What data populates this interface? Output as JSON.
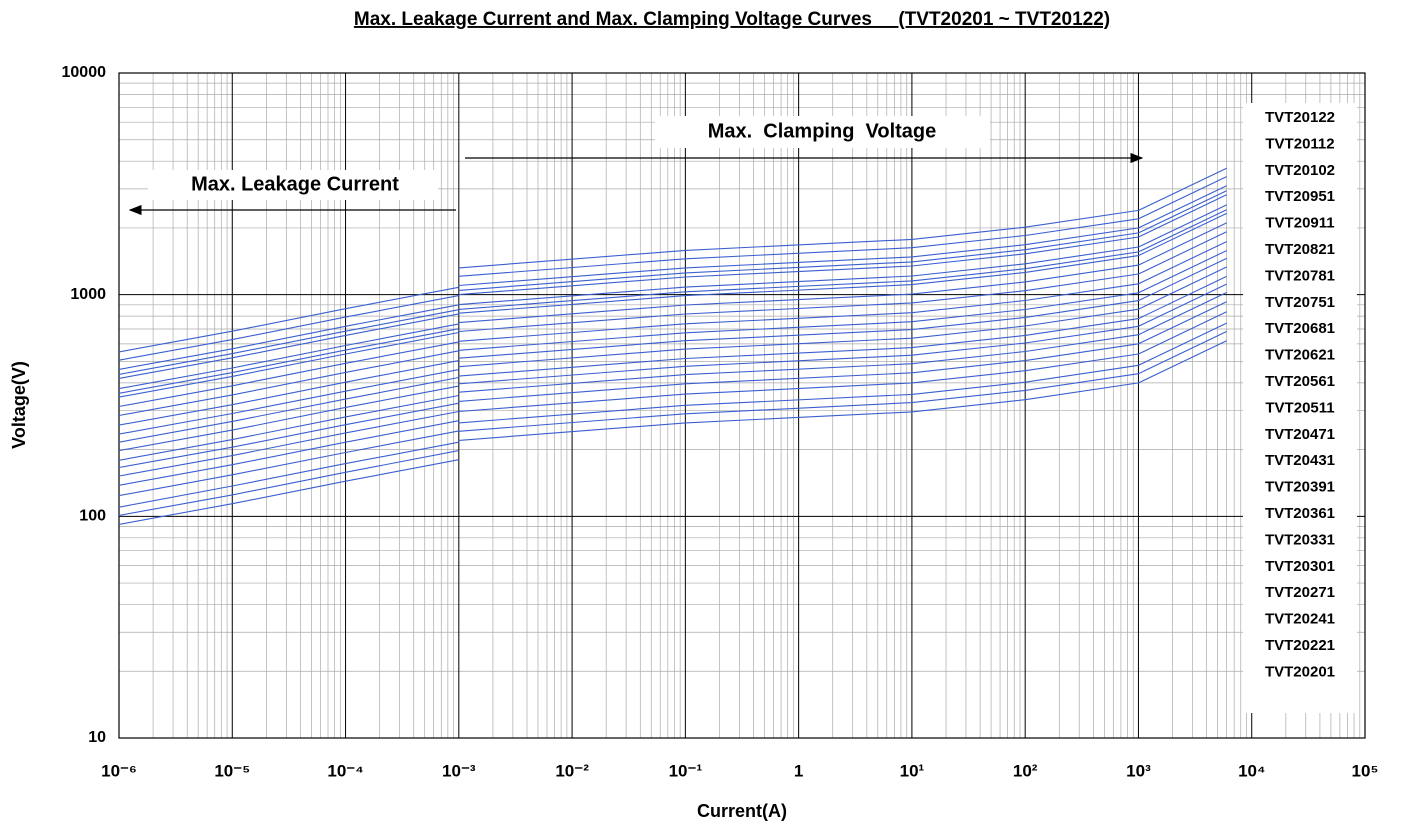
{
  "chart_data": {
    "type": "line",
    "title": "Max. Leakage Current and Max. Clamping Voltage Curves     (TVT20201 ~ TVT20122)",
    "x_label": "Current(A)",
    "y_label": "Voltage(V)",
    "annotations": [
      "Max. Leakage Current",
      "Max.  Clamping  Voltage"
    ],
    "xscale": "log",
    "yscale": "log",
    "grid": true,
    "minor_grid": true,
    "legend": "right",
    "xlim": [
      1e-06,
      100000
    ],
    "ylim": [
      10,
      10000
    ],
    "xticks": [
      {
        "value": 1e-06,
        "label": "10⁻⁶"
      },
      {
        "value": 1e-05,
        "label": "10⁻⁵"
      },
      {
        "value": 0.0001,
        "label": "10⁻⁴"
      },
      {
        "value": 0.001,
        "label": "10⁻³"
      },
      {
        "value": 0.01,
        "label": "10⁻²"
      },
      {
        "value": 0.1,
        "label": "10⁻¹"
      },
      1,
      {
        "value": 10,
        "label": "10¹"
      },
      {
        "value": 100,
        "label": "10²"
      },
      {
        "value": 1000,
        "label": "10³"
      },
      {
        "value": 10000,
        "label": "10⁴"
      },
      {
        "value": 100000,
        "label": "10⁵"
      }
    ],
    "yticks": [
      10,
      100,
      1000,
      10000
    ],
    "leakage_x": [
      1e-06,
      1e-05,
      0.0001,
      0.001
    ],
    "clamping_x": [
      0.001,
      0.1,
      10,
      100,
      1000,
      6000
    ],
    "series": [
      {
        "name": "TVT20122",
        "color": "#3a5fd0",
        "leakage": [
          552,
          684,
          864,
          1080
        ],
        "clamping": [
          1320,
          1584,
          1776,
          2016,
          2400,
          3720
        ]
      },
      {
        "name": "TVT20112",
        "color": "#3a5fd0",
        "leakage": [
          506,
          627,
          792,
          990
        ],
        "clamping": [
          1210,
          1452,
          1628,
          1848,
          2200,
          3410
        ]
      },
      {
        "name": "TVT20102",
        "color": "#3a5fd0",
        "leakage": [
          460,
          570,
          720,
          900
        ],
        "clamping": [
          1100,
          1320,
          1480,
          1680,
          2000,
          3100
        ]
      },
      {
        "name": "TVT20951",
        "color": "#3a5fd0",
        "leakage": [
          437,
          542,
          684,
          855
        ],
        "clamping": [
          1045,
          1254,
          1406,
          1596,
          1900,
          2945
        ]
      },
      {
        "name": "TVT20911",
        "color": "#3a5fd0",
        "leakage": [
          419,
          519,
          655,
          819
        ],
        "clamping": [
          1001,
          1201,
          1347,
          1529,
          1820,
          2821
        ]
      },
      {
        "name": "TVT20821",
        "color": "#3a5fd0",
        "leakage": [
          377,
          467,
          590,
          738
        ],
        "clamping": [
          902,
          1082,
          1214,
          1378,
          1640,
          2542
        ]
      },
      {
        "name": "TVT20781",
        "color": "#3a5fd0",
        "leakage": [
          359,
          445,
          562,
          702
        ],
        "clamping": [
          858,
          1030,
          1154,
          1310,
          1560,
          2418
        ]
      },
      {
        "name": "TVT20751",
        "color": "#3a5fd0",
        "leakage": [
          345,
          428,
          540,
          675
        ],
        "clamping": [
          825,
          990,
          1110,
          1260,
          1500,
          2325
        ]
      },
      {
        "name": "TVT20681",
        "color": "#3a5fd0",
        "leakage": [
          313,
          388,
          490,
          612
        ],
        "clamping": [
          748,
          898,
          1006,
          1142,
          1360,
          2108
        ]
      },
      {
        "name": "TVT20621",
        "color": "#3a5fd0",
        "leakage": [
          285,
          353,
          446,
          558
        ],
        "clamping": [
          682,
          818,
          918,
          1042,
          1240,
          1922
        ]
      },
      {
        "name": "TVT20561",
        "color": "#3a5fd0",
        "leakage": [
          258,
          319,
          403,
          504
        ],
        "clamping": [
          616,
          739,
          829,
          941,
          1120,
          1736
        ]
      },
      {
        "name": "TVT20511",
        "color": "#3a5fd0",
        "leakage": [
          235,
          291,
          367,
          459
        ],
        "clamping": [
          561,
          673,
          755,
          857,
          1020,
          1581
        ]
      },
      {
        "name": "TVT20471",
        "color": "#3a5fd0",
        "leakage": [
          216,
          268,
          338,
          423
        ],
        "clamping": [
          517,
          620,
          696,
          790,
          940,
          1457
        ]
      },
      {
        "name": "TVT20431",
        "color": "#3a5fd0",
        "leakage": [
          198,
          245,
          310,
          387
        ],
        "clamping": [
          473,
          568,
          636,
          722,
          860,
          1333
        ]
      },
      {
        "name": "TVT20391",
        "color": "#3a5fd0",
        "leakage": [
          179,
          222,
          281,
          351
        ],
        "clamping": [
          429,
          515,
          577,
          655,
          780,
          1209
        ]
      },
      {
        "name": "TVT20361",
        "color": "#3a5fd0",
        "leakage": [
          166,
          205,
          259,
          324
        ],
        "clamping": [
          396,
          475,
          533,
          605,
          720,
          1116
        ]
      },
      {
        "name": "TVT20331",
        "color": "#3a5fd0",
        "leakage": [
          152,
          188,
          238,
          297
        ],
        "clamping": [
          363,
          436,
          488,
          554,
          660,
          1023
        ]
      },
      {
        "name": "TVT20301",
        "color": "#3a5fd0",
        "leakage": [
          138,
          171,
          216,
          270
        ],
        "clamping": [
          330,
          396,
          444,
          504,
          600,
          930
        ]
      },
      {
        "name": "TVT20271",
        "color": "#3a5fd0",
        "leakage": [
          124,
          154,
          194,
          243
        ],
        "clamping": [
          297,
          356,
          400,
          454,
          540,
          837
        ]
      },
      {
        "name": "TVT20241",
        "color": "#3a5fd0",
        "leakage": [
          110,
          137,
          173,
          216
        ],
        "clamping": [
          264,
          317,
          355,
          403,
          480,
          744
        ]
      },
      {
        "name": "TVT20221",
        "color": "#3a5fd0",
        "leakage": [
          101,
          125,
          158,
          198
        ],
        "clamping": [
          242,
          290,
          326,
          370,
          440,
          682
        ]
      },
      {
        "name": "TVT20201",
        "color": "#3a5fd0",
        "leakage": [
          92,
          114,
          144,
          180
        ],
        "clamping": [
          220,
          264,
          296,
          336,
          400,
          620
        ]
      }
    ]
  }
}
